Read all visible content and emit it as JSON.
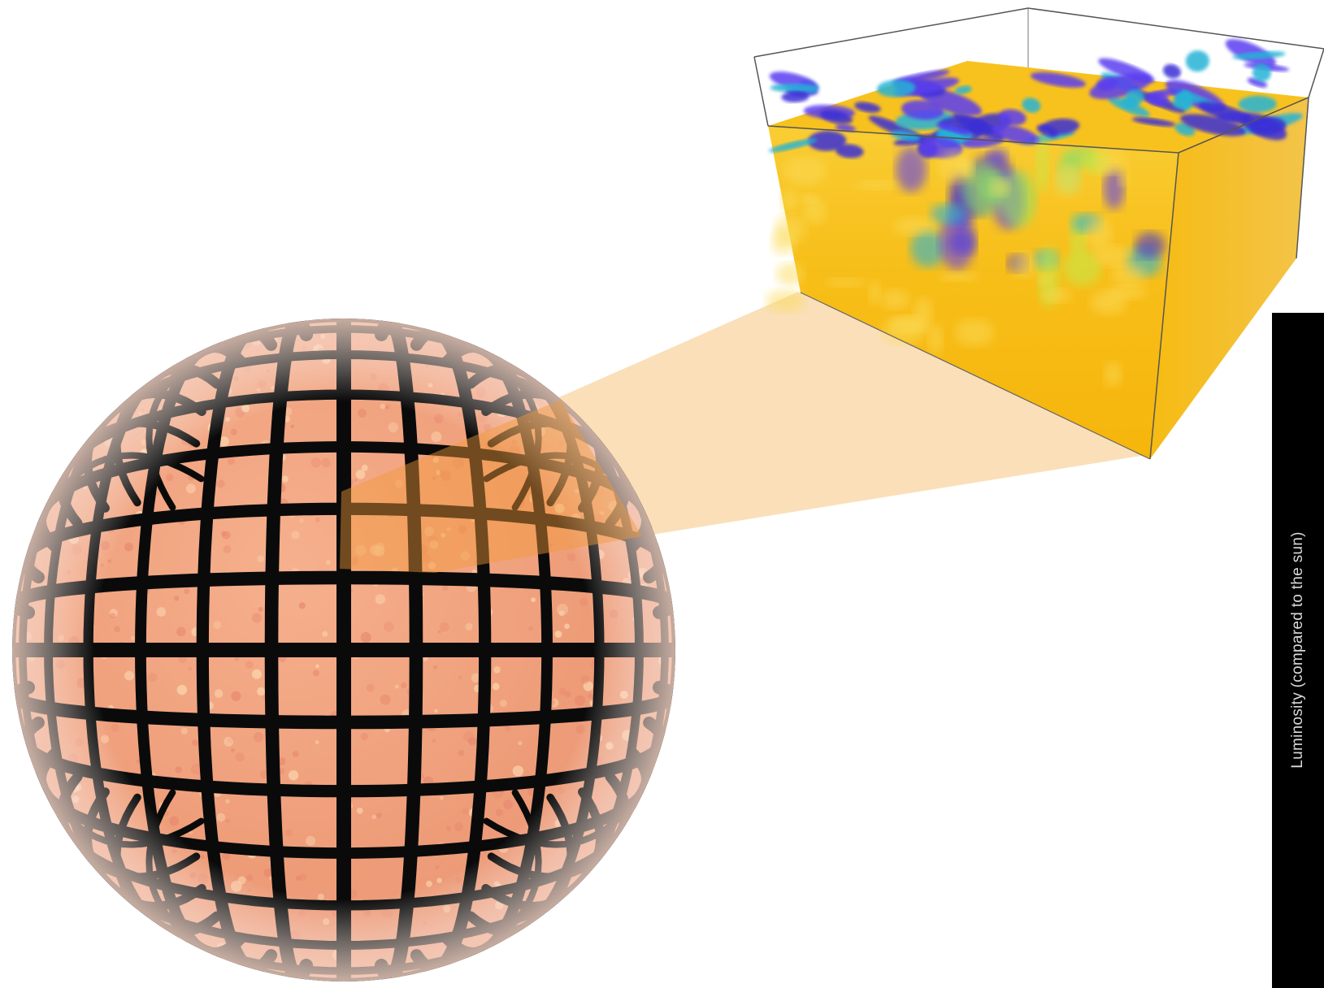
{
  "figure": {
    "sphere": {
      "name": "star-sphere",
      "fill": "#f0a07a",
      "grid_color": "#0a0a0a",
      "speckle": "#fbd6b0"
    },
    "zoom_wedge": {
      "color": "#f7c98a"
    },
    "simulation_box": {
      "name": "convection-simulation-box",
      "frame_color": "#555555",
      "body_colors": [
        "#f6b80a",
        "#f9c82a",
        "#fbdc5a"
      ],
      "flow_colors": [
        "#3a2fd6",
        "#5b3cf0",
        "#27b3d6",
        "#8be06a",
        "#c7e84a"
      ]
    }
  },
  "side_panel": {
    "label": "Luminosity (compared to the sun)",
    "background": "#000000"
  }
}
